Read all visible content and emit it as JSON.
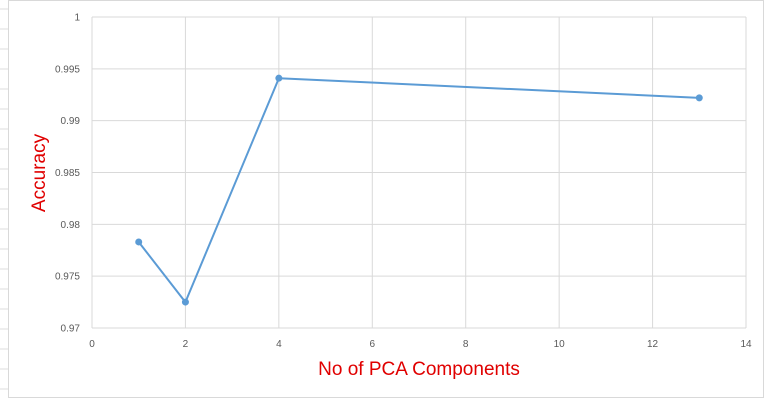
{
  "chart_data": {
    "type": "line",
    "title": "",
    "xlabel": "No of PCA Components",
    "ylabel": "Accuracy",
    "xlim": [
      0,
      14
    ],
    "ylim": [
      0.97,
      1
    ],
    "x_ticks": [
      "0",
      "2",
      "4",
      "6",
      "8",
      "10",
      "12",
      "14"
    ],
    "y_ticks": [
      "0.97",
      "0.975",
      "0.98",
      "0.985",
      "0.99",
      "0.995",
      "1"
    ],
    "grid": true,
    "legend": "none",
    "series": [
      {
        "x": [
          1,
          2,
          4,
          13
        ],
        "y": [
          0.9783,
          0.9725,
          0.9941,
          0.9922
        ],
        "color": "#5b9bd5"
      }
    ],
    "colors": {
      "axis_title": "#e00000",
      "gridline": "#d9d9d9",
      "tick_text": "#595959"
    }
  }
}
